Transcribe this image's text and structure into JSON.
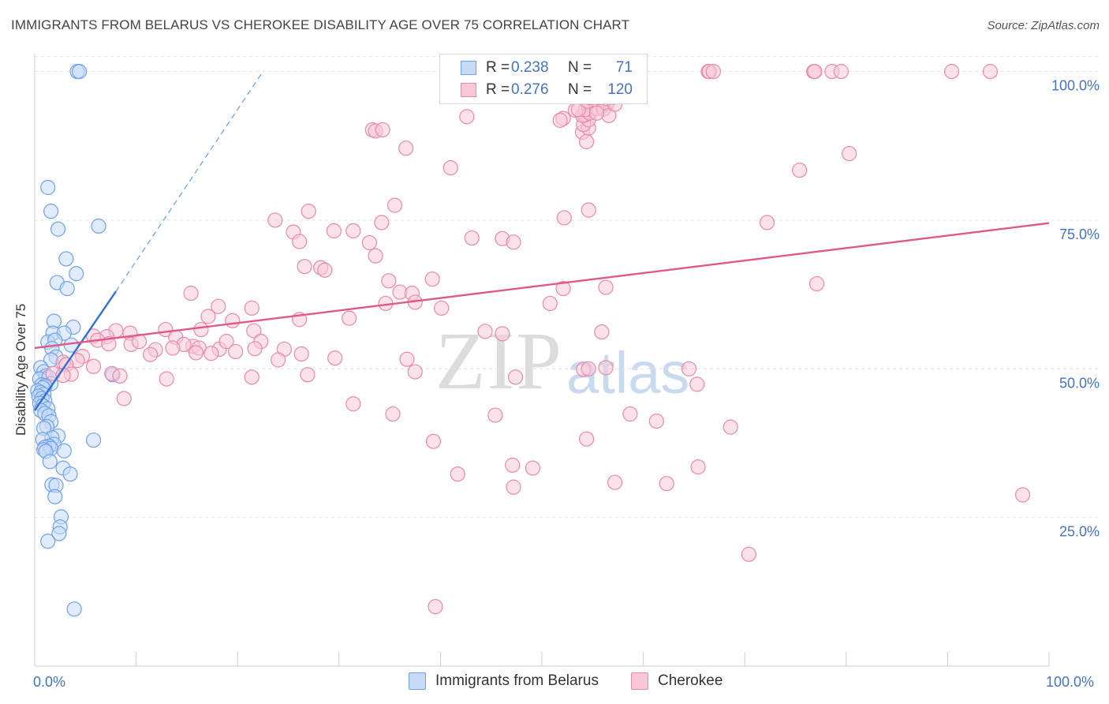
{
  "title": "IMMIGRANTS FROM BELARUS VS CHEROKEE DISABILITY AGE OVER 75 CORRELATION CHART",
  "source": "Source: ZipAtlas.com",
  "watermark": {
    "zip": "ZIP",
    "atlas": "atlas"
  },
  "legend": {
    "rows": [
      {
        "r_label": "R =",
        "r_value": "0.238",
        "n_label": "N =",
        "n_value": "71",
        "color": "#6fa0e8",
        "fill": "#c7dbf7"
      },
      {
        "r_label": "R =",
        "r_value": "0.276",
        "n_label": "N =",
        "n_value": "120",
        "color": "#e88aa8",
        "fill": "#f8c8d8"
      }
    ]
  },
  "bottom_legend": [
    {
      "label": "Immigrants from Belarus",
      "color": "#6fa0e8",
      "fill": "#c7dbf7"
    },
    {
      "label": "Cherokee",
      "color": "#e88aa8",
      "fill": "#f8c8d8"
    }
  ],
  "chart_data": {
    "type": "scatter",
    "title": "IMMIGRANTS FROM BELARUS VS CHEROKEE DISABILITY AGE OVER 75 CORRELATION CHART",
    "xlabel": "",
    "ylabel": "Disability Age Over 75",
    "xlim": [
      0,
      100
    ],
    "ylim": [
      0,
      103
    ],
    "x_tick_labels": [
      "0.0%",
      "100.0%"
    ],
    "y_ticks": [
      25,
      50,
      75,
      100
    ],
    "y_tick_labels": [
      "25.0%",
      "50.0%",
      "75.0%",
      "100.0%"
    ],
    "x_minor_ticks": [
      10,
      20,
      30,
      40,
      50,
      60,
      70,
      80,
      90,
      100
    ],
    "grid": true,
    "series": [
      {
        "name": "Immigrants from Belarus",
        "color": "#6fa0e8",
        "fill": "#c7dbf7",
        "trend": {
          "x": [
            0.0,
            8.0
          ],
          "y": [
            43.0,
            63.0
          ],
          "color": "#2f6fd6"
        },
        "trend_extension": {
          "x": [
            8.0,
            22.5
          ],
          "y": [
            63.0,
            100.0
          ],
          "color": "#6fa0e8",
          "dashed": true
        },
        "points": [
          [
            4.2,
            100
          ],
          [
            4.4,
            100
          ],
          [
            1.3,
            80.5
          ],
          [
            1.6,
            76.5
          ],
          [
            2.3,
            73.5
          ],
          [
            6.3,
            74
          ],
          [
            3.1,
            68.5
          ],
          [
            2.2,
            64.5
          ],
          [
            3.2,
            63.5
          ],
          [
            4.1,
            66
          ],
          [
            1.9,
            58
          ],
          [
            3.8,
            57
          ],
          [
            1.8,
            56
          ],
          [
            2.9,
            56
          ],
          [
            1.3,
            54.5
          ],
          [
            2.0,
            54.8
          ],
          [
            1.7,
            53.4
          ],
          [
            2.1,
            52
          ],
          [
            1.6,
            51.5
          ],
          [
            3.6,
            54
          ],
          [
            7.7,
            49
          ],
          [
            0.6,
            50.2
          ],
          [
            0.9,
            49.5
          ],
          [
            1.1,
            48.8
          ],
          [
            0.5,
            48.3
          ],
          [
            1.4,
            48.6
          ],
          [
            1.6,
            47.5
          ],
          [
            0.7,
            47.3
          ],
          [
            1.0,
            47.1
          ],
          [
            0.8,
            46.8
          ],
          [
            0.3,
            46.3
          ],
          [
            0.6,
            46.0
          ],
          [
            0.9,
            45.7
          ],
          [
            0.4,
            45.4
          ],
          [
            0.7,
            45.0
          ],
          [
            1.0,
            44.6
          ],
          [
            0.5,
            44.2
          ],
          [
            0.8,
            43.8
          ],
          [
            1.3,
            43.3
          ],
          [
            0.6,
            43.0
          ],
          [
            1.0,
            42.5
          ],
          [
            1.4,
            42.1
          ],
          [
            1.6,
            41.1
          ],
          [
            1.2,
            40.3
          ],
          [
            0.9,
            40.0
          ],
          [
            2.3,
            38.7
          ],
          [
            1.7,
            38.4
          ],
          [
            0.8,
            38.1
          ],
          [
            5.8,
            38.0
          ],
          [
            1.9,
            37.3
          ],
          [
            1.4,
            37.0
          ],
          [
            1.0,
            36.8
          ],
          [
            1.6,
            36.6
          ],
          [
            0.9,
            36.4
          ],
          [
            1.1,
            36.1
          ],
          [
            2.9,
            36.2
          ],
          [
            1.5,
            34.4
          ],
          [
            2.8,
            33.3
          ],
          [
            3.5,
            32.3
          ],
          [
            1.7,
            30.5
          ],
          [
            2.1,
            30.4
          ],
          [
            2.0,
            28.5
          ],
          [
            2.6,
            25.1
          ],
          [
            2.5,
            23.4
          ],
          [
            2.4,
            22.3
          ],
          [
            1.3,
            21.0
          ],
          [
            3.9,
            9.6
          ]
        ]
      },
      {
        "name": "Cherokee",
        "color": "#e88aa8",
        "fill": "#f8c8d8",
        "trend": {
          "x": [
            0.0,
            100.0
          ],
          "y": [
            53.5,
            74.5
          ],
          "color": "#e0588a"
        },
        "points": [
          [
            52.7,
            100
          ],
          [
            52.9,
            100
          ],
          [
            66.4,
            100
          ],
          [
            66.5,
            100
          ],
          [
            66.9,
            100
          ],
          [
            76.8,
            100
          ],
          [
            76.9,
            100
          ],
          [
            78.6,
            100
          ],
          [
            79.5,
            100
          ],
          [
            90.4,
            100
          ],
          [
            94.2,
            100
          ],
          [
            52.6,
            96.5
          ],
          [
            56.0,
            94.3
          ],
          [
            56.4,
            94.6
          ],
          [
            42.6,
            92.4
          ],
          [
            33.3,
            90.2
          ],
          [
            54.0,
            89.8
          ],
          [
            54.6,
            90.5
          ],
          [
            54.1,
            91.1
          ],
          [
            54.6,
            91.9
          ],
          [
            54.2,
            92.7
          ],
          [
            54.0,
            92.6
          ],
          [
            52.1,
            92.1
          ],
          [
            51.8,
            91.8
          ],
          [
            54.7,
            93.0
          ],
          [
            54.3,
            93.6
          ],
          [
            53.3,
            93.5
          ],
          [
            53.6,
            93.6
          ],
          [
            55.4,
            93.8
          ],
          [
            56.1,
            93.7
          ],
          [
            33.6,
            90.0
          ],
          [
            54.5,
            95.0
          ],
          [
            56.4,
            95.4
          ],
          [
            57.0,
            95.6
          ],
          [
            54.7,
            95.6
          ],
          [
            56.7,
            95.6
          ],
          [
            55.6,
            95.6
          ],
          [
            56.6,
            92.6
          ],
          [
            57.2,
            94.5
          ],
          [
            55.4,
            93.0
          ],
          [
            34.3,
            90.2
          ],
          [
            36.6,
            87.1
          ],
          [
            54.4,
            88.2
          ],
          [
            80.3,
            86.2
          ],
          [
            41.0,
            83.8
          ],
          [
            75.4,
            83.4
          ],
          [
            35.5,
            77.5
          ],
          [
            54.6,
            76.7
          ],
          [
            52.2,
            75.4
          ],
          [
            23.7,
            75.0
          ],
          [
            27.0,
            76.5
          ],
          [
            34.2,
            74.6
          ],
          [
            29.5,
            73.2
          ],
          [
            72.2,
            74.6
          ],
          [
            25.5,
            73.0
          ],
          [
            31.4,
            73.2
          ],
          [
            43.1,
            72.0
          ],
          [
            46.1,
            71.9
          ],
          [
            47.2,
            71.3
          ],
          [
            33.0,
            71.2
          ],
          [
            33.6,
            69.0
          ],
          [
            26.1,
            71.4
          ],
          [
            26.6,
            67.2
          ],
          [
            28.2,
            67.0
          ],
          [
            28.6,
            66.6
          ],
          [
            34.9,
            64.8
          ],
          [
            39.2,
            65.1
          ],
          [
            52.1,
            63.5
          ],
          [
            56.3,
            63.7
          ],
          [
            77.1,
            64.3
          ],
          [
            36.0,
            62.9
          ],
          [
            37.2,
            62.7
          ],
          [
            34.6,
            61.0
          ],
          [
            50.8,
            61.0
          ],
          [
            37.5,
            61.2
          ],
          [
            40.1,
            60.2
          ],
          [
            31.0,
            58.5
          ],
          [
            15.4,
            62.7
          ],
          [
            17.1,
            58.8
          ],
          [
            19.5,
            58.1
          ],
          [
            18.1,
            60.5
          ],
          [
            26.1,
            58.3
          ],
          [
            21.4,
            60.2
          ],
          [
            16.4,
            56.6
          ],
          [
            21.6,
            56.4
          ],
          [
            22.3,
            54.6
          ],
          [
            44.4,
            56.3
          ],
          [
            46.1,
            55.9
          ],
          [
            55.9,
            56.2
          ],
          [
            8.0,
            56.4
          ],
          [
            9.4,
            56.0
          ],
          [
            12.9,
            56.6
          ],
          [
            13.9,
            55.3
          ],
          [
            15.6,
            53.8
          ],
          [
            18.2,
            53.3
          ],
          [
            14.7,
            54.1
          ],
          [
            18.9,
            54.6
          ],
          [
            16.2,
            53.5
          ],
          [
            7.1,
            55.4
          ],
          [
            5.8,
            55.5
          ],
          [
            6.2,
            54.8
          ],
          [
            7.3,
            54.2
          ],
          [
            9.5,
            54.1
          ],
          [
            10.3,
            54.6
          ],
          [
            11.9,
            53.2
          ],
          [
            11.4,
            52.4
          ],
          [
            13.6,
            53.5
          ],
          [
            15.9,
            52.7
          ],
          [
            17.4,
            52.6
          ],
          [
            19.8,
            52.9
          ],
          [
            21.7,
            53.4
          ],
          [
            24.6,
            53.3
          ],
          [
            26.3,
            52.5
          ],
          [
            36.7,
            51.6
          ],
          [
            24.0,
            51.5
          ],
          [
            29.6,
            51.8
          ],
          [
            4.7,
            52.1
          ],
          [
            4.2,
            51.4
          ],
          [
            2.8,
            51.1
          ],
          [
            3.1,
            50.7
          ],
          [
            3.6,
            49.1
          ],
          [
            1.8,
            49.2
          ],
          [
            2.8,
            48.9
          ],
          [
            5.8,
            50.4
          ],
          [
            7.6,
            49.2
          ],
          [
            8.4,
            48.8
          ],
          [
            13.0,
            48.3
          ],
          [
            21.4,
            48.6
          ],
          [
            26.9,
            49.0
          ],
          [
            37.5,
            49.5
          ],
          [
            47.4,
            48.6
          ],
          [
            54.1,
            49.9
          ],
          [
            54.6,
            50.0
          ],
          [
            56.3,
            50.2
          ],
          [
            64.5,
            50.0
          ],
          [
            65.3,
            47.4
          ],
          [
            8.8,
            45.0
          ],
          [
            31.4,
            44.1
          ],
          [
            35.3,
            42.4
          ],
          [
            45.4,
            42.2
          ],
          [
            58.7,
            42.4
          ],
          [
            61.3,
            41.2
          ],
          [
            68.6,
            40.2
          ],
          [
            39.3,
            37.8
          ],
          [
            54.4,
            38.2
          ],
          [
            41.7,
            32.3
          ],
          [
            47.1,
            33.8
          ],
          [
            49.1,
            33.3
          ],
          [
            57.2,
            30.9
          ],
          [
            65.4,
            33.5
          ],
          [
            62.3,
            30.7
          ],
          [
            97.4,
            28.8
          ],
          [
            47.2,
            30.1
          ],
          [
            70.4,
            18.8
          ],
          [
            39.5,
            10.0
          ]
        ]
      }
    ]
  }
}
